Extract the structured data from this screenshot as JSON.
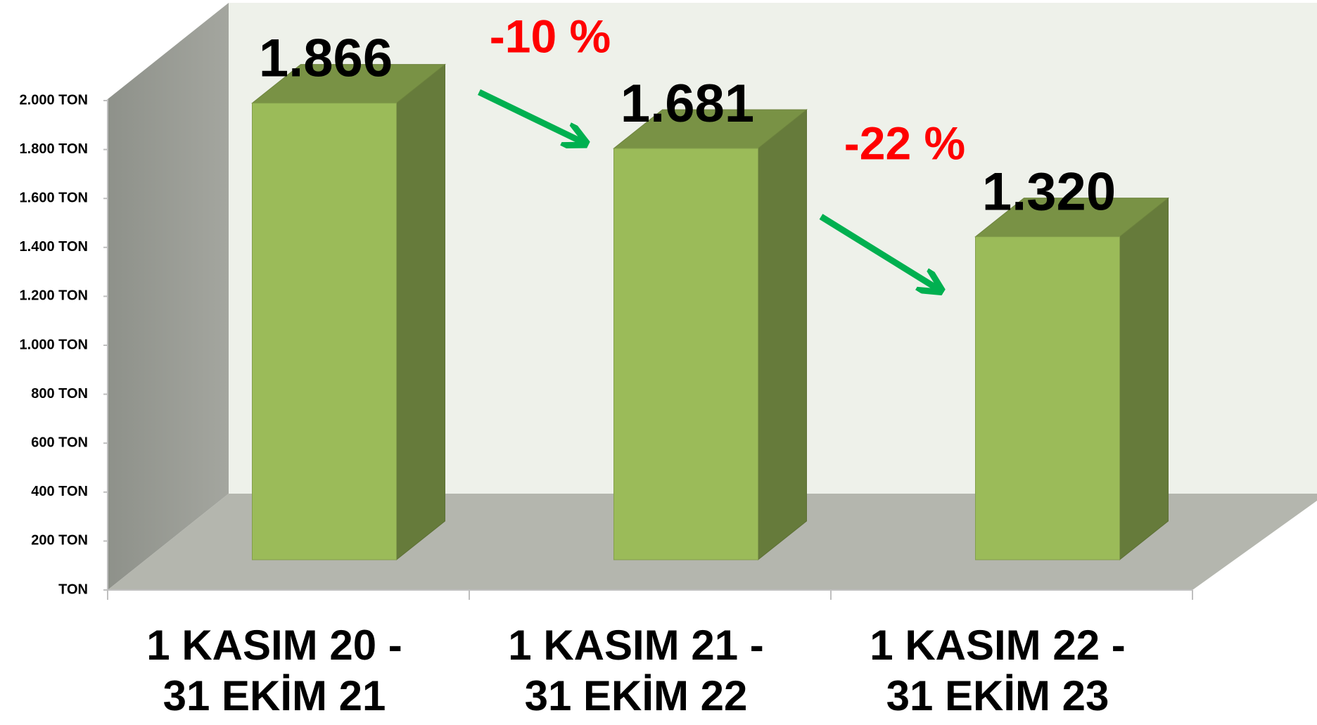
{
  "chart_data": {
    "type": "bar3d",
    "categories": [
      "1 KASIM 20 - 31 EKİM 21",
      "1 KASIM 21 - 31 EKİM 22",
      "1 KASIM 22 - 31 EKİM 23"
    ],
    "values": [
      1866,
      1681,
      1320
    ],
    "value_labels": [
      "1.866",
      "1.681",
      "1.320"
    ],
    "color": "#9bbb59",
    "ylim": [
      0,
      2000
    ],
    "yticks": [
      {
        "value": 0,
        "label": "TON"
      },
      {
        "value": 200,
        "label": "200 TON"
      },
      {
        "value": 400,
        "label": "400 TON"
      },
      {
        "value": 600,
        "label": "600 TON"
      },
      {
        "value": 800,
        "label": "800 TON"
      },
      {
        "value": 1000,
        "label": "1.000 TON"
      },
      {
        "value": 1200,
        "label": "1.200 TON"
      },
      {
        "value": 1400,
        "label": "1.400 TON"
      },
      {
        "value": 1600,
        "label": "1.600 TON"
      },
      {
        "value": 1800,
        "label": "1.800 TON"
      },
      {
        "value": 2000,
        "label": "2.000 TON"
      }
    ],
    "annotations": [
      "-10 %",
      "-22 %"
    ],
    "annotation_color": "#ff0000"
  }
}
